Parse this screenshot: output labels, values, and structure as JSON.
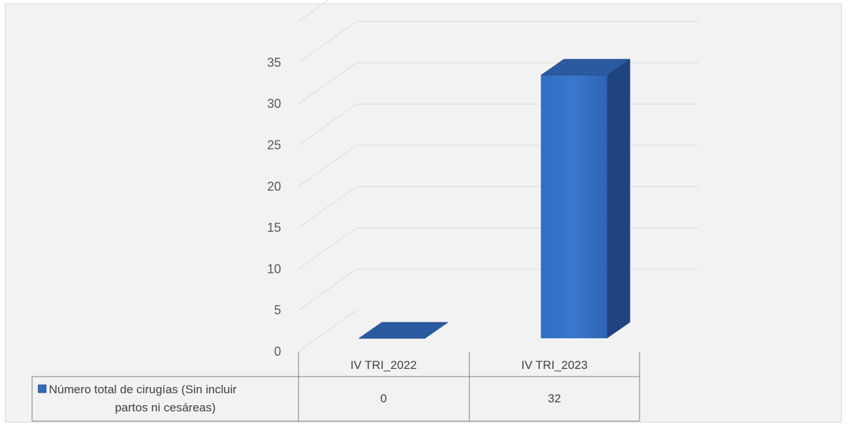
{
  "chart_data": {
    "type": "bar",
    "categories": [
      "IV TRI_2022",
      "IV TRI_2023"
    ],
    "series": [
      {
        "name": "Número total de cirugías (Sin incluir partos ni cesáreas)",
        "values": [
          0,
          32
        ]
      }
    ],
    "y_ticks": [
      "0",
      "5",
      "10",
      "15",
      "20",
      "25",
      "30",
      "35"
    ],
    "ylim": [
      0,
      35
    ],
    "grid": true,
    "legend": "data-table",
    "data_table": {
      "row_label_line1": "Número total de cirugías (Sin incluir",
      "row_label_line2": "partos ni cesáreas)",
      "values": [
        "0",
        "32"
      ]
    },
    "colors": {
      "bar_front": "#3a78cc",
      "bar_side": "#1f4480",
      "bar_top": "#2a5aa0",
      "grid": "#d9d9d9",
      "background": "#f2f2f2"
    }
  }
}
